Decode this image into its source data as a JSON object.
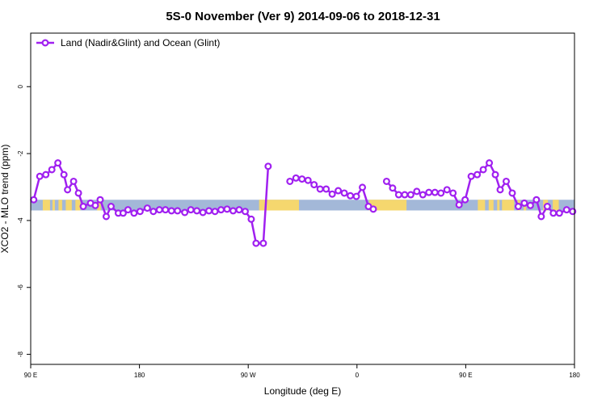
{
  "chart_data": {
    "type": "line",
    "title": "5S-0 November (Ver 9)   2014-09-06 to 2018-12-31",
    "xlabel": "Longitude (deg E)",
    "ylabel": "XCO2 - MLO trend (ppm)",
    "xlim": [
      90,
      540
    ],
    "ylim": [
      -8.3,
      1.6
    ],
    "x_ticks": [
      {
        "value": 90,
        "label": "90 E"
      },
      {
        "value": 180,
        "label": "180"
      },
      {
        "value": 270,
        "label": "90 W"
      },
      {
        "value": 360,
        "label": "0"
      },
      {
        "value": 450,
        "label": "90 E"
      },
      {
        "value": 540,
        "label": "180"
      }
    ],
    "y_ticks": [
      {
        "value": 0,
        "label": "0"
      },
      {
        "value": -2,
        "label": "-2"
      },
      {
        "value": -4,
        "label": "-4"
      },
      {
        "value": -6,
        "label": "-6"
      },
      {
        "value": -8,
        "label": "-8"
      }
    ],
    "grid": false,
    "legend": {
      "position": "top-left"
    },
    "colors": {
      "series": "#a020f0",
      "ocean_band": "#a3b8d8",
      "land_band": "#f5d76e"
    },
    "land_band": {
      "y_range": [
        -3.7,
        -3.38
      ],
      "land_segments": [
        [
          100,
          106
        ],
        [
          108,
          110
        ],
        [
          113,
          116
        ],
        [
          119,
          124
        ],
        [
          127,
          131
        ],
        [
          145,
          148
        ],
        [
          279,
          312
        ],
        [
          370,
          401
        ],
        [
          460,
          466
        ],
        [
          469,
          473
        ],
        [
          476,
          478
        ],
        [
          480,
          490
        ],
        [
          493,
          495
        ],
        [
          498,
          500
        ],
        [
          514,
          518
        ],
        [
          522,
          527
        ]
      ]
    },
    "series": [
      {
        "name": "Land (Nadir&Glint) and Ocean (Glint)",
        "segments": [
          [
            [
              92.5,
              -3.38
            ],
            [
              97.5,
              -2.68
            ],
            [
              102.5,
              -2.63
            ],
            [
              107.5,
              -2.48
            ],
            [
              112.5,
              -2.28
            ],
            [
              117.5,
              -2.63
            ],
            [
              120.5,
              -3.08
            ],
            [
              125.5,
              -2.83
            ],
            [
              129.5,
              -3.18
            ],
            [
              133.5,
              -3.58
            ],
            [
              139.5,
              -3.48
            ],
            [
              143.5,
              -3.55
            ],
            [
              147.5,
              -3.38
            ],
            [
              152.5,
              -3.88
            ],
            [
              156.5,
              -3.58
            ],
            [
              162.5,
              -3.78
            ],
            [
              166.5,
              -3.78
            ],
            [
              170.5,
              -3.68
            ],
            [
              175.5,
              -3.78
            ],
            [
              180.5,
              -3.73
            ],
            [
              186.5,
              -3.63
            ],
            [
              191.5,
              -3.73
            ],
            [
              196.5,
              -3.68
            ],
            [
              201.5,
              -3.68
            ],
            [
              206.5,
              -3.71
            ],
            [
              211.5,
              -3.71
            ],
            [
              217.5,
              -3.76
            ],
            [
              222.5,
              -3.68
            ],
            [
              227.5,
              -3.71
            ],
            [
              232.5,
              -3.76
            ],
            [
              237.5,
              -3.71
            ],
            [
              242.5,
              -3.73
            ],
            [
              247.5,
              -3.68
            ],
            [
              252.5,
              -3.66
            ],
            [
              257.5,
              -3.71
            ],
            [
              262.5,
              -3.68
            ],
            [
              267.5,
              -3.73
            ],
            [
              272.5,
              -3.96
            ],
            [
              276.5,
              -4.68
            ],
            [
              282.5,
              -4.68
            ],
            [
              286.5,
              -2.38
            ]
          ],
          [
            [
              304.5,
              -2.83
            ],
            [
              309.5,
              -2.73
            ],
            [
              314.5,
              -2.76
            ],
            [
              319.5,
              -2.8
            ],
            [
              324.5,
              -2.93
            ],
            [
              329.5,
              -3.06
            ],
            [
              334.5,
              -3.06
            ],
            [
              339.5,
              -3.21
            ],
            [
              344.5,
              -3.11
            ],
            [
              349.5,
              -3.18
            ],
            [
              354.5,
              -3.26
            ],
            [
              359.5,
              -3.28
            ],
            [
              364.5,
              -3.01
            ],
            [
              369.5,
              -3.58
            ],
            [
              373.5,
              -3.66
            ]
          ],
          [
            [
              384.5,
              -2.83
            ],
            [
              389.5,
              -3.03
            ],
            [
              394.5,
              -3.23
            ],
            [
              399.5,
              -3.23
            ],
            [
              404.5,
              -3.23
            ],
            [
              409.5,
              -3.13
            ],
            [
              414.5,
              -3.23
            ],
            [
              419.5,
              -3.16
            ],
            [
              424.5,
              -3.16
            ],
            [
              429.5,
              -3.18
            ],
            [
              434.5,
              -3.08
            ],
            [
              439.5,
              -3.18
            ],
            [
              444.5,
              -3.53
            ],
            [
              449.5,
              -3.38
            ],
            [
              454.5,
              -2.68
            ],
            [
              459.5,
              -2.63
            ],
            [
              464.5,
              -2.48
            ],
            [
              469.5,
              -2.28
            ],
            [
              474.5,
              -2.63
            ],
            [
              478.5,
              -3.08
            ],
            [
              483.5,
              -2.83
            ],
            [
              488.5,
              -3.18
            ],
            [
              493.5,
              -3.58
            ],
            [
              498.5,
              -3.48
            ],
            [
              503.5,
              -3.55
            ],
            [
              508.5,
              -3.38
            ],
            [
              512.5,
              -3.88
            ],
            [
              517.5,
              -3.58
            ],
            [
              522.5,
              -3.78
            ],
            [
              527.5,
              -3.78
            ],
            [
              533.5,
              -3.68
            ],
            [
              538.5,
              -3.73
            ]
          ]
        ]
      }
    ]
  }
}
